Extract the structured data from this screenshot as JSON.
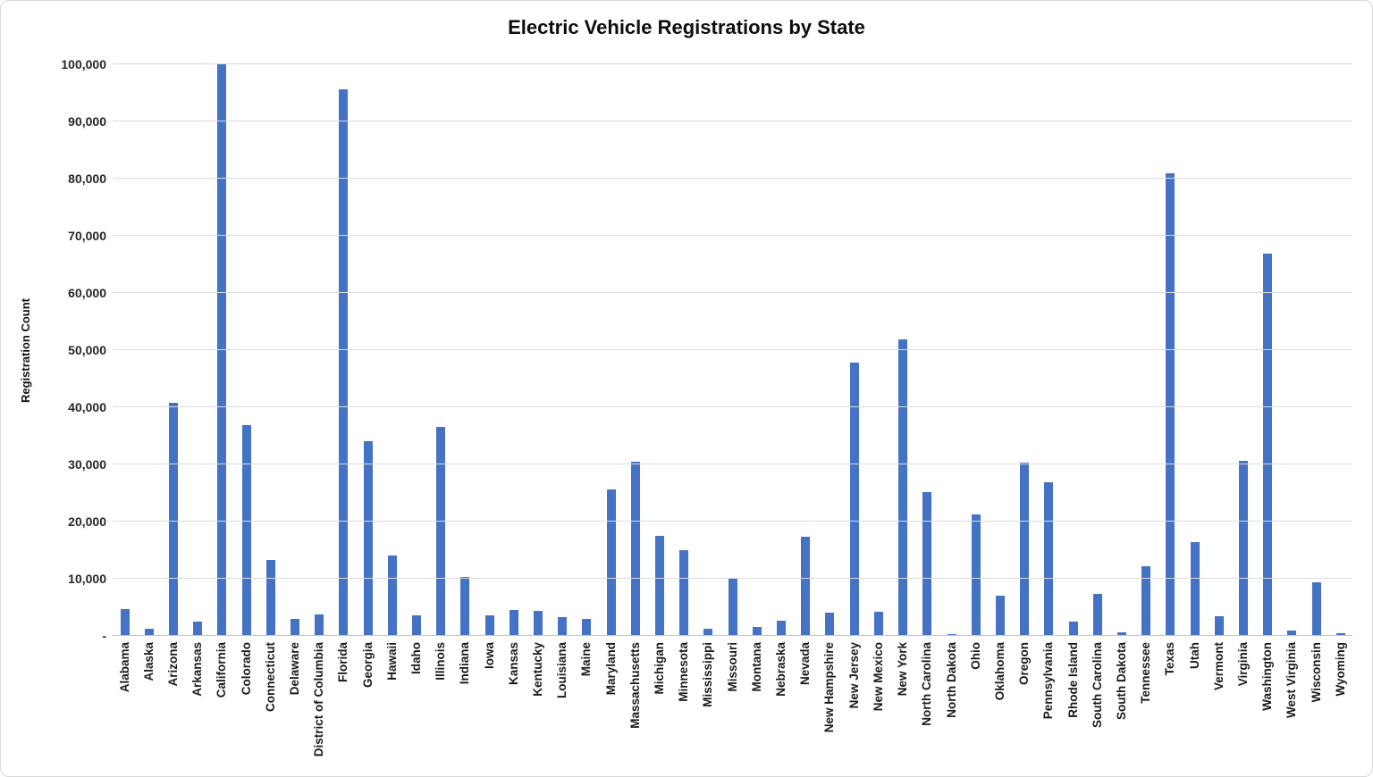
{
  "title": "Electric Vehicle Registrations by State",
  "colors": {
    "bar": "#4472c4",
    "gridline": "#dcdcdc",
    "axis_line": "#c4c4c4",
    "tick_text": "#262626",
    "title_text": "#0d0d0d"
  },
  "chart_data": {
    "type": "bar",
    "title": "Electric Vehicle Registrations by State",
    "xlabel": "",
    "ylabel": "Registration Count",
    "ylim": [
      0,
      100000
    ],
    "ytick_step": 10000,
    "ytick_labels": [
      "-",
      "10,000",
      "20,000",
      "30,000",
      "40,000",
      "50,000",
      "60,000",
      "70,000",
      "80,000",
      "90,000",
      "100,000"
    ],
    "grid": "horizontal-only",
    "legend_position": "none",
    "bar_color": "#4472c4",
    "categories": [
      "Alabama",
      "Alaska",
      "Arizona",
      "Arkansas",
      "California",
      "Colorado",
      "Connecticut",
      "Delaware",
      "District of Columbia",
      "Florida",
      "Georgia",
      "Hawaii",
      "Idaho",
      "Illinois",
      "Indiana",
      "Iowa",
      "Kansas",
      "Kentucky",
      "Louisiana",
      "Maine",
      "Maryland",
      "Massachusetts",
      "Michigan",
      "Minnesota",
      "Mississippi",
      "Missouri",
      "Montana",
      "Nebraska",
      "Nevada",
      "New Hampshire",
      "New Jersey",
      "New Mexico",
      "New York",
      "North Carolina",
      "North Dakota",
      "Ohio",
      "Oklahoma",
      "Oregon",
      "Pennsylvania",
      "Rhode Island",
      "South Carolina",
      "South Dakota",
      "Tennessee",
      "Texas",
      "Utah",
      "Vermont",
      "Virginia",
      "Washington",
      "West Virginia",
      "Wisconsin",
      "Wyoming"
    ],
    "values": [
      4750,
      1290,
      40740,
      2430,
      100000,
      36910,
      13320,
      2960,
      3820,
      95640,
      34020,
      14130,
      3540,
      36520,
      10330,
      3660,
      4600,
      4340,
      3220,
      2970,
      25700,
      30470,
      17460,
      14940,
      1310,
      10050,
      1620,
      2690,
      17350,
      4120,
      47830,
      4210,
      51870,
      25190,
      380,
      21190,
      7110,
      30380,
      26810,
      2520,
      7370,
      650,
      12140,
      80900,
      16430,
      3410,
      30660,
      66810,
      1010,
      9340,
      510
    ]
  }
}
